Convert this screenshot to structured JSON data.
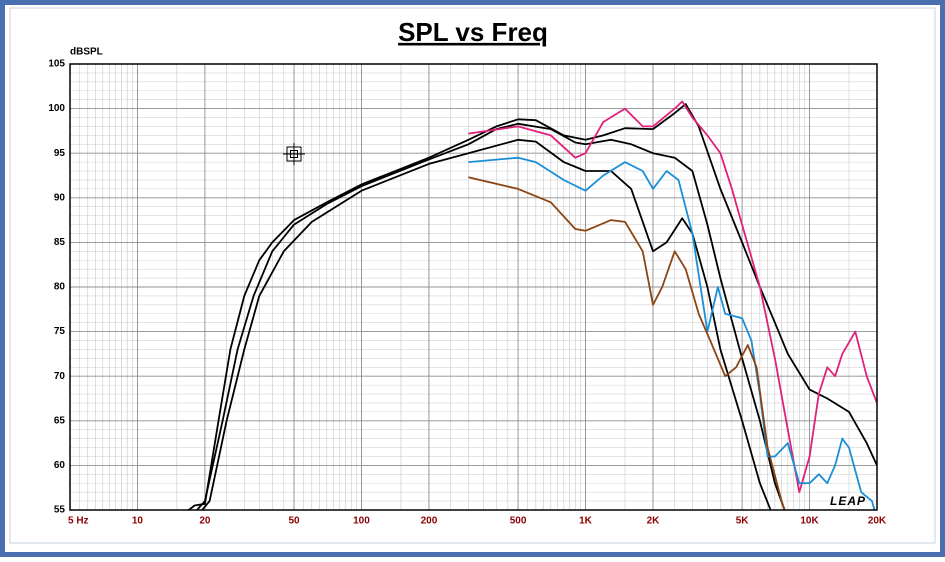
{
  "chart_data": {
    "type": "line",
    "title": "SPL vs Freq",
    "ylabel": "dBSPL",
    "annotation": "LEAP",
    "xscale": "log",
    "grid": true,
    "xlim": [
      5,
      20000
    ],
    "ylim": [
      55,
      105
    ],
    "xticks": [
      {
        "value": 5,
        "label": "5 Hz"
      },
      10,
      20,
      50,
      100,
      200,
      500,
      {
        "value": 1000,
        "label": "1K"
      },
      {
        "value": 2000,
        "label": "2K"
      },
      {
        "value": 5000,
        "label": "5K"
      },
      {
        "value": 10000,
        "label": "10K"
      },
      {
        "value": 20000,
        "label": "20K"
      }
    ],
    "yticks": [
      55,
      60,
      65,
      70,
      75,
      80,
      85,
      90,
      95,
      100,
      105
    ],
    "series": [
      {
        "color": "#000000",
        "x": [
          15,
          18,
          20,
          23,
          26,
          30,
          35,
          40,
          50,
          70,
          100,
          200,
          300,
          400,
          500,
          600,
          800,
          1000,
          1200,
          1500,
          2000,
          2500,
          2800,
          3200,
          4000,
          5000,
          6000,
          7000,
          8000,
          10000,
          12000,
          15000,
          18000,
          20000
        ],
        "values": [
          54,
          55.5,
          55.7,
          65,
          73,
          79,
          83,
          85,
          87.5,
          89.5,
          91.5,
          94.5,
          96.5,
          98,
          98.8,
          98.7,
          97,
          96.5,
          97,
          97.8,
          97.7,
          99.5,
          100.5,
          98,
          91,
          85,
          80,
          76,
          72.5,
          68.5,
          67.5,
          66,
          62.5,
          60
        ]
      },
      {
        "color": "#000000",
        "x": [
          17,
          20,
          24,
          28,
          33,
          40,
          50,
          70,
          100,
          200,
          300,
          400,
          500,
          700,
          900,
          1000,
          1300,
          1600,
          2000,
          2500,
          3000,
          3500,
          4000,
          5000,
          6000,
          7000,
          8000
        ],
        "values": [
          54,
          56,
          65,
          73,
          79,
          84,
          87,
          89.3,
          91.3,
          94.3,
          96,
          97.7,
          98.3,
          97.7,
          96.2,
          96,
          96.5,
          96,
          95,
          94.5,
          93,
          87,
          81,
          72,
          65,
          58,
          54
        ]
      },
      {
        "color": "#000000",
        "x": [
          18,
          21,
          25,
          30,
          35,
          45,
          60,
          100,
          200,
          300,
          500,
          600,
          800,
          1000,
          1300,
          1600,
          2000,
          2300,
          2700,
          3000,
          3500,
          4000,
          5000,
          6000,
          6700,
          7500
        ],
        "values": [
          54,
          56,
          65,
          73,
          79,
          84,
          87.3,
          90.8,
          93.8,
          95,
          96.5,
          96.3,
          94,
          93,
          93,
          91,
          84,
          85,
          87.7,
          86,
          80,
          73,
          65,
          58,
          55,
          54
        ]
      },
      {
        "color": "#e0217a",
        "x": [
          300,
          500,
          700,
          900,
          1000,
          1200,
          1500,
          1800,
          2000,
          2500,
          2700,
          3000,
          3500,
          4000,
          4500,
          5000,
          6000,
          7000,
          8000,
          9000,
          10000,
          11000,
          12000,
          13000,
          14000,
          16000,
          18000,
          20000
        ],
        "values": [
          97.2,
          98,
          97,
          94.5,
          95,
          98.5,
          100,
          98,
          98,
          100,
          100.8,
          99,
          97,
          95,
          91,
          87,
          80,
          72,
          64,
          57,
          61,
          68,
          71,
          70,
          72.5,
          75,
          70,
          67
        ]
      },
      {
        "color": "#1a8fd8",
        "x": [
          300,
          500,
          600,
          800,
          1000,
          1200,
          1500,
          1800,
          2000,
          2300,
          2600,
          3000,
          3500,
          3900,
          4200,
          5000,
          5500,
          6000,
          6500,
          7000,
          8000,
          9000,
          10000,
          11000,
          12000,
          13000,
          14000,
          15000,
          17000,
          19000,
          20000
        ],
        "values": [
          94,
          94.5,
          94,
          92,
          90.8,
          92.5,
          94,
          93,
          91,
          93,
          92,
          86,
          75,
          80,
          77,
          76.5,
          74,
          68,
          61,
          61,
          62.5,
          58,
          58,
          59,
          58,
          60,
          63,
          62,
          57,
          56,
          54
        ]
      },
      {
        "color": "#8b4513",
        "x": [
          300,
          500,
          700,
          900,
          1000,
          1300,
          1500,
          1800,
          2000,
          2200,
          2500,
          2800,
          3200,
          3600,
          4200,
          4700,
          5300,
          5800,
          6500,
          7500,
          8000
        ],
        "values": [
          92.3,
          91,
          89.5,
          86.5,
          86.3,
          87.5,
          87.3,
          84,
          78,
          80,
          84,
          82,
          77,
          74,
          70,
          71,
          73.5,
          71,
          62,
          56,
          54
        ]
      }
    ]
  }
}
